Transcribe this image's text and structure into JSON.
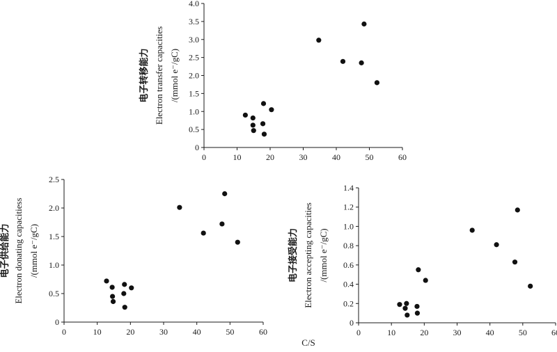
{
  "chart_data": [
    {
      "type": "scatter",
      "ylabel_cn": "电子转移能力",
      "ylabel_en": "Electron transfer capacities",
      "ylabel_unit": "/(mmol e⁻/gC)",
      "xlim": [
        0,
        60
      ],
      "ylim": [
        0,
        4.0
      ],
      "xticks": [
        "0",
        "10",
        "20",
        "30",
        "40",
        "50",
        "60"
      ],
      "yticks": [
        "0",
        "0.5",
        "1.0",
        "1.5",
        "2.0",
        "2.5",
        "3.0",
        "3.5",
        "4.0"
      ],
      "x": [
        12.5,
        14.8,
        14.8,
        15.0,
        17.8,
        18.0,
        18.2,
        20.4,
        34.7,
        42.0,
        47.6,
        48.4,
        52.3
      ],
      "y": [
        0.9,
        0.82,
        0.62,
        0.47,
        0.66,
        1.22,
        0.37,
        1.05,
        2.98,
        2.39,
        2.35,
        3.43,
        1.8
      ]
    },
    {
      "type": "scatter",
      "ylabel_cn": "电子供给能力",
      "ylabel_en": "Electron donating capacitiess",
      "ylabel_unit": "/(mmol e⁻/gC)",
      "xlim": [
        0,
        60
      ],
      "ylim": [
        0,
        2.5
      ],
      "xticks": [
        "0",
        "10",
        "20",
        "30",
        "40",
        "50",
        "60"
      ],
      "yticks": [
        "0",
        "0.5",
        "1.0",
        "1.5",
        "2.0",
        "2.5"
      ],
      "x": [
        12.8,
        14.5,
        14.6,
        14.8,
        18.0,
        18.2,
        18.3,
        20.3,
        34.8,
        42.0,
        47.6,
        48.4,
        52.3
      ],
      "y": [
        0.72,
        0.61,
        0.45,
        0.36,
        0.5,
        0.66,
        0.26,
        0.6,
        2.01,
        1.56,
        1.72,
        2.25,
        1.4
      ]
    },
    {
      "type": "scatter",
      "ylabel_cn": "电子接受能力",
      "ylabel_en": "Electron accepting capacities",
      "ylabel_unit": "/(mmol e⁻/gC)",
      "xlim": [
        0,
        60
      ],
      "ylim": [
        0,
        1.4
      ],
      "xticks": [
        "0",
        "10",
        "20",
        "30",
        "40",
        "50",
        "60"
      ],
      "yticks": [
        "0",
        "0.2",
        "0.4",
        "0.6",
        "0.8",
        "1.0",
        "1.2",
        "1.4"
      ],
      "x": [
        12.5,
        14.2,
        14.6,
        14.8,
        17.8,
        17.9,
        18.2,
        20.4,
        34.6,
        42.0,
        47.6,
        48.4,
        52.3
      ],
      "y": [
        0.19,
        0.15,
        0.2,
        0.08,
        0.17,
        0.1,
        0.55,
        0.44,
        0.96,
        0.81,
        0.63,
        1.17,
        0.38
      ]
    }
  ],
  "shared_xlabel": "C/S"
}
